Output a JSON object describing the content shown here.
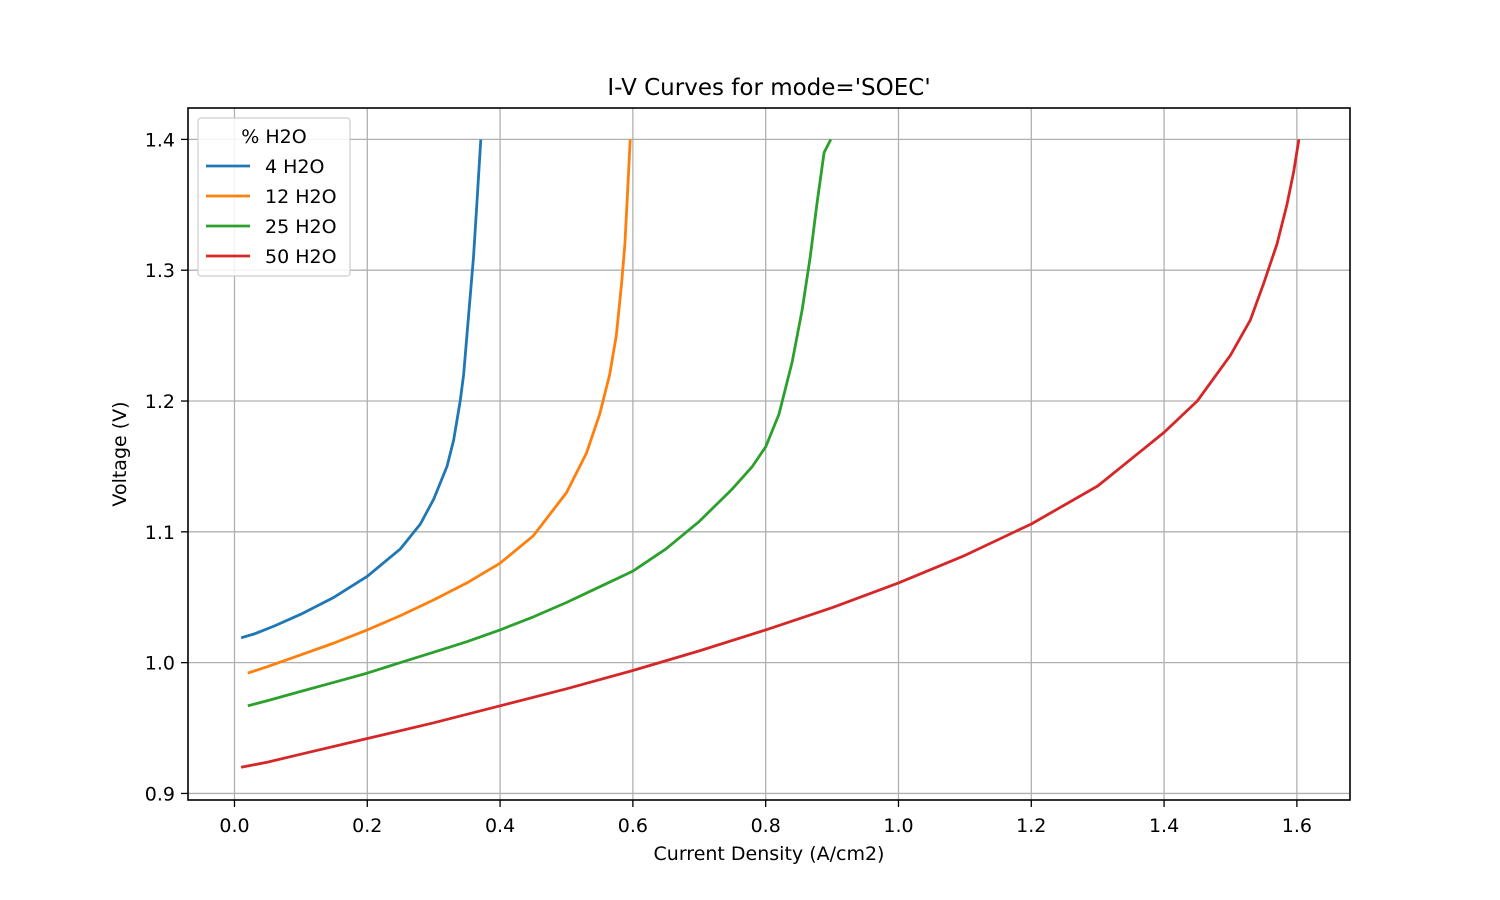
{
  "chart_data": {
    "type": "line",
    "title": "I-V Curves for mode='SOEC'",
    "xlabel": "Current Density (A/cm2)",
    "ylabel": "Voltage (V)",
    "xlim": [
      -0.07,
      1.68
    ],
    "ylim": [
      0.895,
      1.424
    ],
    "x_ticks": [
      0.0,
      0.2,
      0.4,
      0.6,
      0.8,
      1.0,
      1.2,
      1.4,
      1.6
    ],
    "x_tick_labels": [
      "0.0",
      "0.2",
      "0.4",
      "0.6",
      "0.8",
      "1.0",
      "1.2",
      "1.4",
      "1.6"
    ],
    "y_ticks": [
      0.9,
      1.0,
      1.1,
      1.2,
      1.3,
      1.4
    ],
    "y_tick_labels": [
      "0.9",
      "1.0",
      "1.1",
      "1.2",
      "1.3",
      "1.4"
    ],
    "grid": true,
    "legend": {
      "title": "% H2O",
      "position": "top-left"
    },
    "series": [
      {
        "name": "4 H2O",
        "color": "#1f77b4",
        "points": [
          [
            0.01,
            1.019
          ],
          [
            0.03,
            1.022
          ],
          [
            0.06,
            1.028
          ],
          [
            0.1,
            1.037
          ],
          [
            0.15,
            1.05
          ],
          [
            0.2,
            1.066
          ],
          [
            0.25,
            1.087
          ],
          [
            0.28,
            1.106
          ],
          [
            0.3,
            1.125
          ],
          [
            0.32,
            1.15
          ],
          [
            0.33,
            1.17
          ],
          [
            0.34,
            1.2
          ],
          [
            0.345,
            1.22
          ],
          [
            0.35,
            1.25
          ],
          [
            0.355,
            1.28
          ],
          [
            0.36,
            1.31
          ],
          [
            0.365,
            1.35
          ],
          [
            0.368,
            1.375
          ],
          [
            0.371,
            1.4
          ]
        ]
      },
      {
        "name": "12 H2O",
        "color": "#ff7f0e",
        "points": [
          [
            0.02,
            0.992
          ],
          [
            0.05,
            0.997
          ],
          [
            0.1,
            1.006
          ],
          [
            0.15,
            1.015
          ],
          [
            0.2,
            1.025
          ],
          [
            0.25,
            1.036
          ],
          [
            0.3,
            1.048
          ],
          [
            0.35,
            1.061
          ],
          [
            0.4,
            1.076
          ],
          [
            0.45,
            1.097
          ],
          [
            0.5,
            1.13
          ],
          [
            0.53,
            1.16
          ],
          [
            0.55,
            1.19
          ],
          [
            0.565,
            1.22
          ],
          [
            0.575,
            1.25
          ],
          [
            0.583,
            1.29
          ],
          [
            0.588,
            1.32
          ],
          [
            0.592,
            1.36
          ],
          [
            0.596,
            1.4
          ]
        ]
      },
      {
        "name": "25 H2O",
        "color": "#2ca02c",
        "points": [
          [
            0.02,
            0.967
          ],
          [
            0.05,
            0.971
          ],
          [
            0.1,
            0.978
          ],
          [
            0.15,
            0.985
          ],
          [
            0.2,
            0.992
          ],
          [
            0.25,
            1.0
          ],
          [
            0.3,
            1.008
          ],
          [
            0.35,
            1.016
          ],
          [
            0.4,
            1.025
          ],
          [
            0.45,
            1.035
          ],
          [
            0.5,
            1.046
          ],
          [
            0.55,
            1.058
          ],
          [
            0.6,
            1.07
          ],
          [
            0.65,
            1.087
          ],
          [
            0.7,
            1.108
          ],
          [
            0.75,
            1.133
          ],
          [
            0.78,
            1.15
          ],
          [
            0.8,
            1.165
          ],
          [
            0.82,
            1.19
          ],
          [
            0.84,
            1.23
          ],
          [
            0.855,
            1.27
          ],
          [
            0.867,
            1.31
          ],
          [
            0.877,
            1.35
          ],
          [
            0.888,
            1.39
          ],
          [
            0.898,
            1.4
          ]
        ]
      },
      {
        "name": "50 H2O",
        "color": "#d62728",
        "points": [
          [
            0.01,
            0.92
          ],
          [
            0.05,
            0.924
          ],
          [
            0.1,
            0.93
          ],
          [
            0.2,
            0.942
          ],
          [
            0.3,
            0.954
          ],
          [
            0.4,
            0.967
          ],
          [
            0.5,
            0.98
          ],
          [
            0.6,
            0.994
          ],
          [
            0.7,
            1.009
          ],
          [
            0.8,
            1.025
          ],
          [
            0.9,
            1.042
          ],
          [
            1.0,
            1.061
          ],
          [
            1.1,
            1.082
          ],
          [
            1.2,
            1.106
          ],
          [
            1.3,
            1.135
          ],
          [
            1.4,
            1.176
          ],
          [
            1.45,
            1.2
          ],
          [
            1.5,
            1.235
          ],
          [
            1.53,
            1.262
          ],
          [
            1.55,
            1.29
          ],
          [
            1.57,
            1.32
          ],
          [
            1.585,
            1.35
          ],
          [
            1.595,
            1.375
          ],
          [
            1.603,
            1.4
          ]
        ]
      }
    ]
  }
}
